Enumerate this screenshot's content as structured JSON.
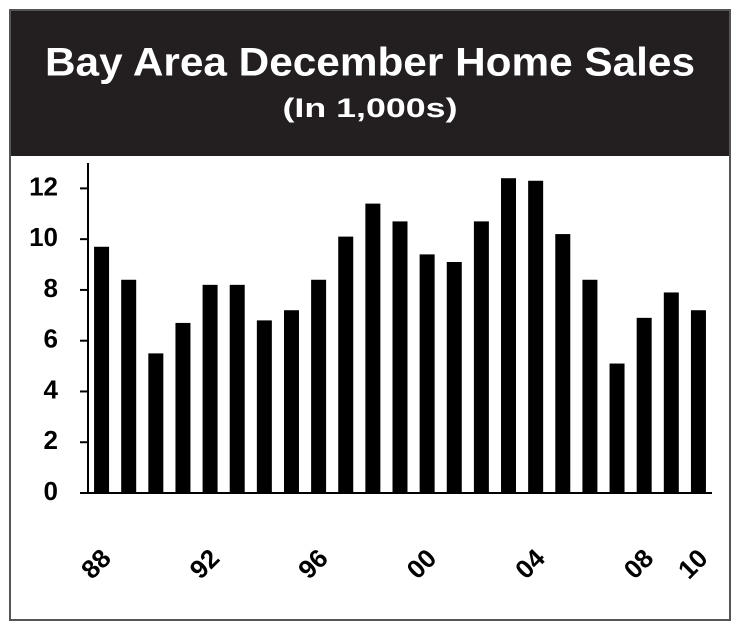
{
  "chart_data": {
    "type": "bar",
    "title": "Bay Area December Home Sales",
    "subtitle": "(In 1,000s)",
    "categories": [
      "88",
      null,
      null,
      null,
      "92",
      null,
      null,
      null,
      "96",
      null,
      null,
      null,
      "00",
      null,
      null,
      null,
      "04",
      null,
      null,
      null,
      "08",
      null,
      "10"
    ],
    "values": [
      9.7,
      8.4,
      5.5,
      6.7,
      8.2,
      8.2,
      6.8,
      7.2,
      8.4,
      10.1,
      11.4,
      10.7,
      9.4,
      9.1,
      10.7,
      12.4,
      12.3,
      10.2,
      8.4,
      5.1,
      6.9,
      7.9,
      7.2
    ],
    "color": "#000000",
    "ylim": [
      0,
      13
    ],
    "yticks": [
      0,
      2,
      4,
      6,
      8,
      10,
      12
    ],
    "grid": false
  }
}
